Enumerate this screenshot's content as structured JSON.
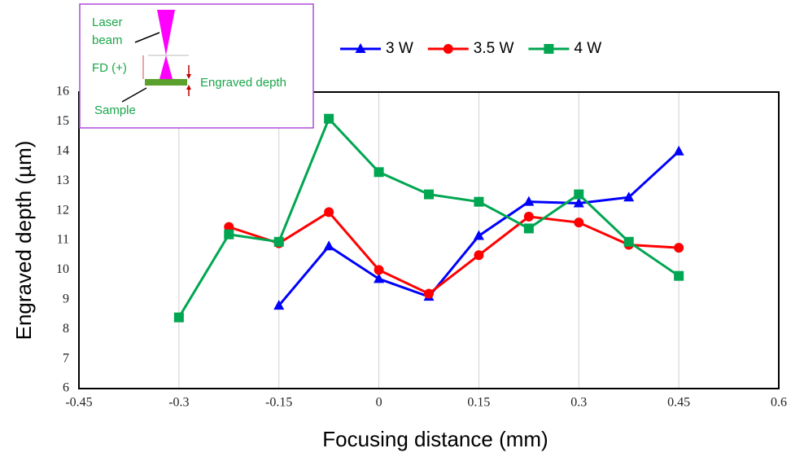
{
  "chart_data": {
    "type": "line",
    "x_label": "Focusing distance (mm)",
    "y_label": "Engraved depth (µm)",
    "x": [
      -0.3,
      -0.225,
      -0.15,
      -0.075,
      0,
      0.075,
      0.15,
      0.225,
      0.3,
      0.375,
      0.45
    ],
    "series": [
      {
        "name": "3 W",
        "color": "#0000ff",
        "marker": "triangle",
        "values": [
          null,
          null,
          8.8,
          10.8,
          9.7,
          9.1,
          11.15,
          12.3,
          12.25,
          12.45,
          14.0
        ]
      },
      {
        "name": "3.5 W",
        "color": "#ff0000",
        "marker": "circle",
        "values": [
          null,
          11.45,
          10.9,
          11.95,
          10.0,
          9.2,
          10.5,
          11.8,
          11.6,
          10.85,
          10.75
        ]
      },
      {
        "name": "4 W",
        "color": "#00a651",
        "marker": "square",
        "values": [
          8.4,
          11.2,
          10.95,
          15.1,
          13.3,
          12.55,
          12.3,
          11.4,
          12.55,
          10.95,
          9.8
        ]
      }
    ],
    "xlim": [
      -0.45,
      0.6
    ],
    "xticks": [
      -0.45,
      -0.3,
      -0.15,
      0,
      0.15,
      0.3,
      0.45,
      0.6
    ],
    "ylim": [
      6,
      16
    ],
    "yticks": [
      6,
      7,
      8,
      9,
      10,
      11,
      12,
      13,
      14,
      15,
      16
    ],
    "grid": "x",
    "legend": "top",
    "inset_labels": [
      "Laser",
      "beam",
      "FD (+)",
      "Engraved depth",
      "Sample"
    ]
  }
}
